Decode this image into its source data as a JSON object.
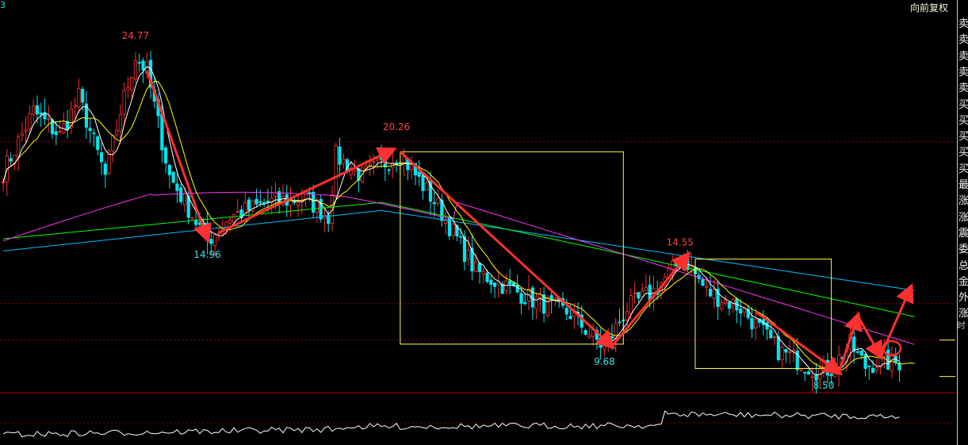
{
  "header": {
    "adjust_mode": "向前复权",
    "code_fragment": "3"
  },
  "right_panel": {
    "items": [
      {
        "label": "卖",
        "color": "#f0f0f0"
      },
      {
        "label": "卖",
        "color": "#f0f0f0"
      },
      {
        "label": "卖",
        "color": "#f0f0f0"
      },
      {
        "label": "卖",
        "color": "#f0f0f0"
      },
      {
        "label": "卖",
        "color": "#f0f0f0"
      },
      {
        "label": "买",
        "color": "#f0f0f0"
      },
      {
        "label": "买",
        "color": "#f0f0f0"
      },
      {
        "label": "买",
        "color": "#f0f0f0"
      },
      {
        "label": "买",
        "color": "#f0f0f0"
      },
      {
        "label": "买",
        "color": "#f0f0f0"
      },
      {
        "label": "最",
        "color": "#f0f0f0"
      },
      {
        "label": "涨",
        "color": "#f0f0f0"
      },
      {
        "label": "涨",
        "color": "#f0f0f0"
      },
      {
        "label": "震",
        "color": "#f0f0f0"
      },
      {
        "label": "委",
        "color": "#f0f0f0"
      },
      {
        "label": "总",
        "color": "#f0f0f0"
      },
      {
        "label": "金",
        "color": "#f0f0f0"
      },
      {
        "label": "外",
        "color": "#f0f0f0"
      },
      {
        "label": "涨",
        "color": "#f0f0f0"
      }
    ],
    "time_label": "时"
  },
  "chart_data": {
    "type": "candlestick",
    "price_range": [
      7.8,
      26.8
    ],
    "colors": {
      "up": "#ff3232",
      "down": "#00e5ee",
      "ma5": "#ffffff",
      "ma10": "#ffff00",
      "ma60": "#ff33ff",
      "ma120": "#00ff00",
      "ma250": "#00bfff",
      "annotation": "#ff3030",
      "box": "#ffff44"
    },
    "price_labels": [
      {
        "text": "24.77",
        "value": 24.77,
        "kind": "high",
        "bar": 35
      },
      {
        "text": "14.96",
        "value": 14.96,
        "kind": "low",
        "bar": 54
      },
      {
        "text": "20.26",
        "value": 20.26,
        "kind": "high",
        "bar": 104
      },
      {
        "text": "9.68",
        "value": 9.68,
        "kind": "low",
        "bar": 159
      },
      {
        "text": "14.55",
        "value": 14.55,
        "kind": "high",
        "bar": 179
      },
      {
        "text": "8.50",
        "value": 8.5,
        "kind": "low",
        "bar": 217
      }
    ],
    "reference_lines": [
      20.0,
      12.0,
      10.2
    ],
    "highlight_boxes": [
      {
        "from_bar": 105,
        "to_bar": 164,
        "top": 19.5,
        "bottom": 10.0
      },
      {
        "from_bar": 183,
        "to_bar": 219,
        "top": 14.2,
        "bottom": 8.8
      }
    ],
    "trend_arrows": [
      {
        "from": [
          38,
          23.5
        ],
        "to": [
          54,
          15.2
        ]
      },
      {
        "from": [
          57,
          15.5
        ],
        "to": [
          103,
          19.6
        ]
      },
      {
        "from": [
          105,
          19.5
        ],
        "to": [
          161,
          9.9
        ]
      },
      {
        "from": [
          161,
          9.9
        ],
        "to": [
          181,
          14.4
        ]
      },
      {
        "from": [
          199,
          11.6
        ],
        "to": [
          221,
          8.6
        ]
      },
      {
        "from": [
          221,
          8.6
        ],
        "to": [
          226,
          11.4
        ]
      },
      {
        "from": [
          226,
          11.4
        ],
        "to": [
          232,
          9.4
        ]
      },
      {
        "from": [
          232,
          9.4
        ],
        "to": [
          240,
          12.8
        ]
      }
    ],
    "marker_circle": {
      "bar": 235,
      "value": 9.8
    },
    "anchors": [
      [
        0,
        18.5
      ],
      [
        8,
        21.5
      ],
      [
        15,
        20.3
      ],
      [
        20,
        22.2
      ],
      [
        27,
        18.3
      ],
      [
        31,
        21.5
      ],
      [
        35,
        24.2
      ],
      [
        38,
        23.5
      ],
      [
        44,
        18.3
      ],
      [
        54,
        15.1
      ],
      [
        60,
        16.3
      ],
      [
        70,
        17.0
      ],
      [
        80,
        17.2
      ],
      [
        86,
        16.3
      ],
      [
        88,
        19.3
      ],
      [
        95,
        18.3
      ],
      [
        103,
        19.2
      ],
      [
        105,
        19.4
      ],
      [
        115,
        16.8
      ],
      [
        125,
        13.6
      ],
      [
        140,
        12.2
      ],
      [
        150,
        11.5
      ],
      [
        159,
        9.8
      ],
      [
        165,
        11.8
      ],
      [
        172,
        12.6
      ],
      [
        180,
        14.3
      ],
      [
        186,
        12.6
      ],
      [
        195,
        11.8
      ],
      [
        205,
        9.7
      ],
      [
        215,
        8.7
      ],
      [
        219,
        8.8
      ],
      [
        224,
        10.0
      ],
      [
        228,
        8.9
      ],
      [
        231,
        9.1
      ]
    ]
  }
}
